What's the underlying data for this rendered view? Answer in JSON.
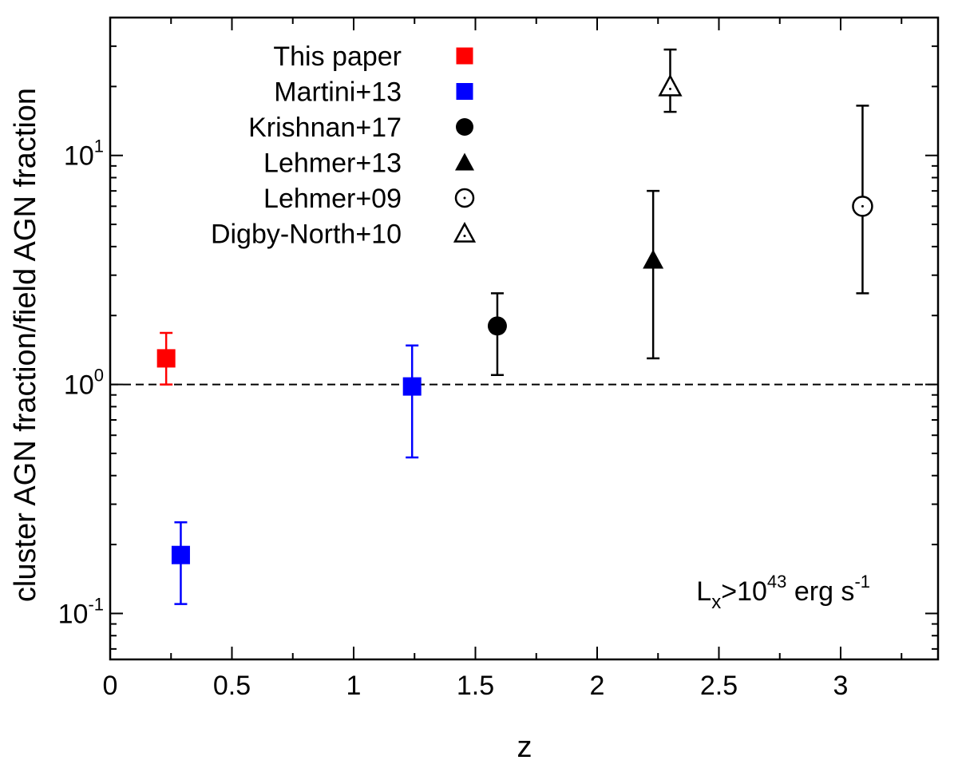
{
  "chart_data": {
    "type": "scatter",
    "xlabel": "z",
    "ylabel": "cluster AGN fraction/field AGN fraction",
    "xlim": [
      0,
      3.4
    ],
    "ylim": [
      0.063,
      40
    ],
    "y_scale": "log",
    "x_ticks": [
      {
        "value": 0,
        "label": "0"
      },
      {
        "value": 0.5,
        "label": "0.5"
      },
      {
        "value": 1,
        "label": "1"
      },
      {
        "value": 1.5,
        "label": "1.5"
      },
      {
        "value": 2,
        "label": "2"
      },
      {
        "value": 2.5,
        "label": "2.5"
      },
      {
        "value": 3,
        "label": "3"
      }
    ],
    "y_ticks": [
      {
        "value": 0.1,
        "base": "10",
        "exp": "-1"
      },
      {
        "value": 1,
        "base": "10",
        "exp": "0"
      },
      {
        "value": 10,
        "base": "10",
        "exp": "1"
      }
    ],
    "reference_line": {
      "y": 1,
      "style": "dashed"
    },
    "annotation": {
      "base": "L",
      "sub": "x",
      "mid": ">10",
      "sup": "43",
      "unit": " erg s",
      "unit_sup": "-1"
    },
    "legend_position": "top-left",
    "series": [
      {
        "name": "This paper",
        "color": "#ff0000",
        "marker": "square-filled",
        "points": [
          {
            "x": 0.23,
            "y": 1.3,
            "ylow": 1.0,
            "yhigh": 1.68
          }
        ]
      },
      {
        "name": "Martini+13",
        "color": "#0000ff",
        "marker": "square-filled",
        "points": [
          {
            "x": 0.29,
            "y": 0.18,
            "ylow": 0.11,
            "yhigh": 0.25
          },
          {
            "x": 1.24,
            "y": 0.98,
            "ylow": 0.48,
            "yhigh": 1.48
          }
        ]
      },
      {
        "name": "Krishnan+17",
        "color": "#000000",
        "marker": "circle-filled",
        "points": [
          {
            "x": 1.59,
            "y": 1.8,
            "ylow": 1.1,
            "yhigh": 2.5
          }
        ]
      },
      {
        "name": "Lehmer+13",
        "color": "#000000",
        "marker": "triangle-filled",
        "points": [
          {
            "x": 2.23,
            "y": 3.5,
            "ylow": 1.3,
            "yhigh": 7.0
          }
        ]
      },
      {
        "name": "Lehmer+09",
        "color": "#000000",
        "marker": "circle-open",
        "points": [
          {
            "x": 3.09,
            "y": 6.0,
            "ylow": 2.5,
            "yhigh": 16.5
          }
        ]
      },
      {
        "name": "Digby-North+10",
        "color": "#000000",
        "marker": "triangle-open",
        "points": [
          {
            "x": 2.3,
            "y": 20.0,
            "ylow": 15.5,
            "yhigh": 29.0
          }
        ]
      }
    ]
  }
}
